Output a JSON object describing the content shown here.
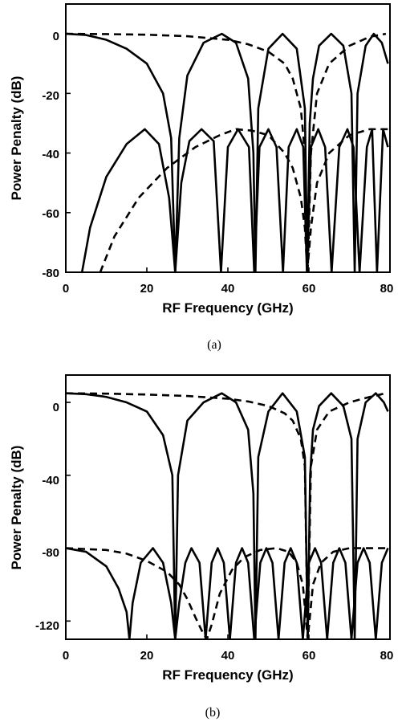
{
  "chart_data": [
    {
      "type": "line",
      "caption": "(a)",
      "xlabel": "RF Frequency (GHz)",
      "ylabel": "Power Penalty (dB)",
      "xlim": [
        0,
        80
      ],
      "ylim": [
        -80,
        10
      ],
      "xticks": [
        "0",
        "20",
        "40",
        "60",
        "80"
      ],
      "yticks": [
        "0",
        "-20",
        "-40",
        "-60",
        "-80"
      ],
      "grid": false,
      "series": [
        {
          "style": "solid",
          "x": [
            0,
            5,
            10,
            15,
            20,
            24,
            26,
            27,
            28,
            30,
            34,
            38.5,
            42,
            45,
            46.3,
            46.8,
            47.5,
            50,
            53.5,
            57,
            59,
            59.6,
            60.2,
            61,
            62.5,
            65.5,
            68.5,
            70.5,
            71.3,
            72,
            74,
            76,
            78,
            79.5
          ],
          "y": [
            0,
            -0.4,
            -2,
            -5,
            -10,
            -20,
            -35,
            -80,
            -35,
            -14,
            -3,
            0,
            -3,
            -15,
            -40,
            -80,
            -25,
            -5,
            0,
            -5,
            -25,
            -80,
            -30,
            -15,
            -4,
            0,
            -4,
            -20,
            -80,
            -20,
            -4,
            0,
            -3,
            -10
          ]
        },
        {
          "style": "solid",
          "x": [
            4,
            6,
            10,
            15,
            19.5,
            23,
            25.5,
            27,
            28.5,
            30.5,
            33.5,
            36.5,
            38.3,
            40,
            42.5,
            45.2,
            46.5,
            47.8,
            50,
            52,
            53.6,
            55,
            57,
            58.6,
            59.5,
            60.5,
            62.3,
            64,
            65.6,
            67.5,
            69.5,
            71,
            72.5,
            74.3,
            75.6,
            76.8,
            78.3,
            79.5
          ],
          "y": [
            -80,
            -65,
            -48,
            -37,
            -32,
            -37,
            -55,
            -80,
            -50,
            -36,
            -32,
            -36,
            -80,
            -38,
            -32,
            -38,
            -80,
            -38,
            -32,
            -38,
            -80,
            -38,
            -32,
            -38,
            -80,
            -38,
            -32,
            -38,
            -80,
            -38,
            -32,
            -38,
            -80,
            -38,
            -32,
            -80,
            -32,
            -38
          ]
        },
        {
          "style": "dashed",
          "x": [
            0,
            10,
            20,
            30,
            40,
            45,
            50,
            54,
            56,
            58,
            59,
            59.7,
            60.5,
            62,
            65,
            70,
            75,
            79
          ],
          "y": [
            0,
            -0.1,
            -0.3,
            -0.8,
            -2,
            -3.5,
            -6,
            -10,
            -15,
            -25,
            -40,
            -80,
            -40,
            -20,
            -10,
            -4,
            -1,
            0
          ]
        },
        {
          "style": "dashed",
          "x": [
            8.5,
            12,
            18,
            25,
            32,
            38,
            42,
            46,
            50,
            54,
            56,
            58,
            59,
            59.6,
            60.5,
            62,
            65,
            70,
            75,
            79.5
          ],
          "y": [
            -80,
            -68,
            -55,
            -45,
            -38,
            -34,
            -32,
            -32.5,
            -34,
            -40,
            -45,
            -55,
            -65,
            -80,
            -65,
            -50,
            -40,
            -34,
            -32,
            -32
          ]
        }
      ]
    },
    {
      "type": "line",
      "caption": "(b)",
      "xlabel": "RF Frequency (GHz)",
      "ylabel": "Power Penalty (dB)",
      "xlim": [
        0,
        80
      ],
      "ylim": [
        -130,
        15
      ],
      "xticks": [
        "0",
        "20",
        "40",
        "60",
        "80"
      ],
      "yticks": [
        "0",
        "-40",
        "-80",
        "-120"
      ],
      "grid": false,
      "series": [
        {
          "style": "solid",
          "x": [
            0,
            5,
            10,
            15,
            20,
            24,
            26.3,
            27,
            27.7,
            30,
            34,
            38.5,
            42,
            45,
            46.3,
            46.8,
            47.5,
            50,
            53.5,
            57,
            59,
            59.7,
            60.3,
            61,
            62.5,
            65.5,
            68.5,
            70.5,
            71.3,
            72,
            74,
            76.5,
            78.5,
            79.5
          ],
          "y": [
            5,
            4.5,
            3,
            0,
            -5,
            -18,
            -40,
            -130,
            -40,
            -10,
            0,
            5,
            0,
            -15,
            -50,
            -130,
            -30,
            -5,
            5,
            -5,
            -30,
            -130,
            -40,
            -15,
            -2,
            5,
            -2,
            -20,
            -130,
            -20,
            0,
            5,
            0,
            -5
          ]
        },
        {
          "style": "solid",
          "x": [
            0,
            5,
            10,
            13,
            15,
            15.7,
            16.5,
            18.5,
            21.5,
            24,
            26,
            27,
            28,
            29.5,
            31,
            33,
            34.5,
            36,
            37.5,
            39,
            40.5,
            42,
            43.5,
            45,
            46.5,
            48,
            49.5,
            51,
            52.5,
            54,
            55.5,
            57,
            58.5,
            60,
            61.5,
            63,
            64.5,
            66,
            67.5,
            69,
            70.5,
            72,
            73.5,
            75,
            76.5,
            78,
            79.5
          ],
          "y": [
            -80,
            -82,
            -90,
            -102,
            -115,
            -130,
            -110,
            -88,
            -80,
            -88,
            -110,
            -130,
            -110,
            -88,
            -80,
            -88,
            -130,
            -88,
            -80,
            -88,
            -130,
            -88,
            -80,
            -88,
            -130,
            -88,
            -80,
            -88,
            -130,
            -88,
            -80,
            -88,
            -130,
            -88,
            -80,
            -88,
            -130,
            -88,
            -80,
            -88,
            -130,
            -88,
            -80,
            -88,
            -130,
            -88,
            -80
          ]
        },
        {
          "style": "dashed",
          "x": [
            0,
            10,
            20,
            30,
            40,
            45,
            50,
            54,
            56,
            58,
            59,
            59.7,
            60.5,
            62,
            65,
            70,
            75,
            79
          ],
          "y": [
            5,
            4.8,
            4.3,
            3.5,
            2,
            0.5,
            -2,
            -6,
            -10,
            -20,
            -35,
            -130,
            -35,
            -15,
            -5,
            0,
            3,
            5
          ]
        },
        {
          "style": "dashed",
          "x": [
            0,
            10,
            15,
            20,
            25,
            28,
            30,
            32,
            33.5,
            34.8,
            36,
            38,
            41,
            44,
            48,
            52,
            55,
            57,
            58.5,
            59.7,
            61,
            63,
            66,
            70,
            75,
            79.5
          ],
          "y": [
            -80,
            -81,
            -83,
            -87,
            -93,
            -100,
            -108,
            -118,
            -125,
            -130,
            -122,
            -105,
            -92,
            -85,
            -81,
            -80,
            -82,
            -88,
            -100,
            -130,
            -100,
            -88,
            -82,
            -80,
            -80,
            -80
          ]
        }
      ]
    }
  ]
}
